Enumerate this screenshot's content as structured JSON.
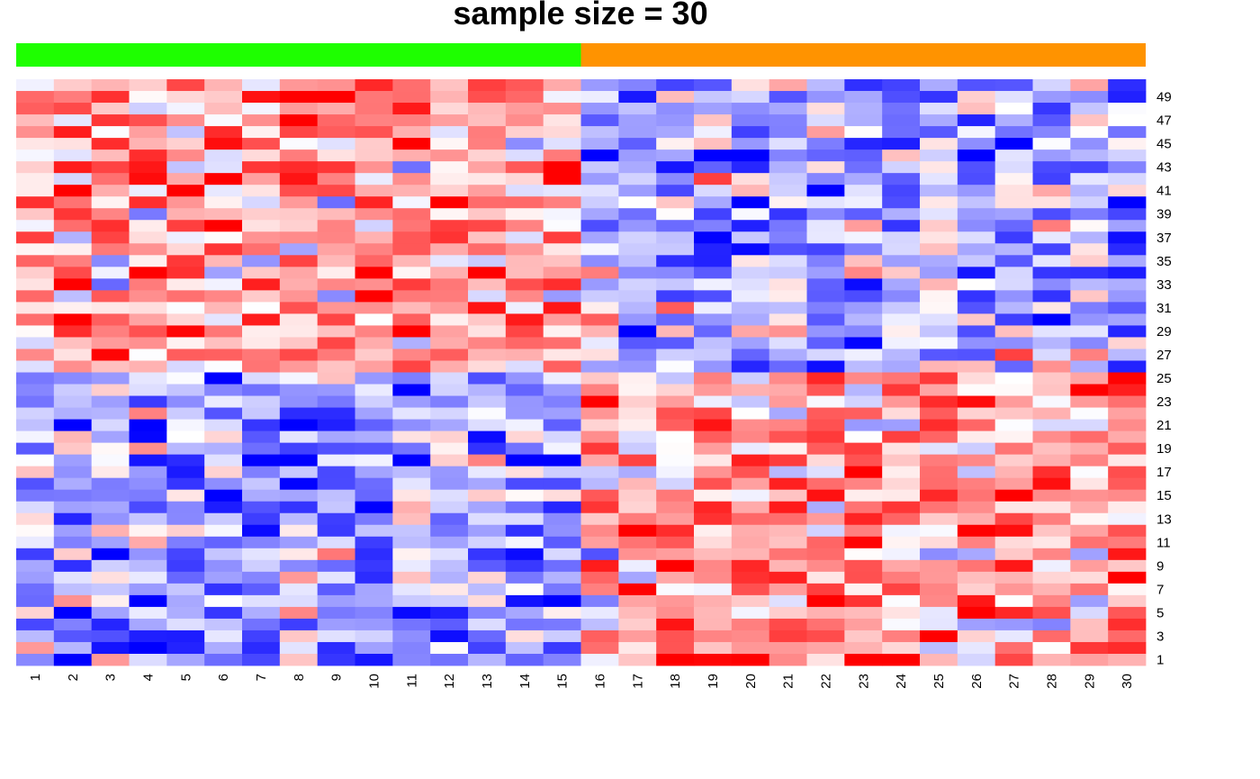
{
  "chart_data": {
    "type": "heatmap",
    "title": "sample size = 30",
    "columns": [
      "1",
      "2",
      "3",
      "4",
      "5",
      "6",
      "7",
      "8",
      "9",
      "10",
      "11",
      "12",
      "13",
      "14",
      "15",
      "16",
      "17",
      "18",
      "19",
      "20",
      "21",
      "22",
      "23",
      "24",
      "25",
      "26",
      "27",
      "28",
      "29",
      "30"
    ],
    "row_tick_labels": [
      "49",
      "47",
      "45",
      "43",
      "41",
      "39",
      "37",
      "35",
      "33",
      "31",
      "29",
      "27",
      "25",
      "23",
      "21",
      "19",
      "17",
      "15",
      "13",
      "11",
      "9",
      "7",
      "5",
      "3",
      "1"
    ],
    "n_rows": 50,
    "column_groups": [
      {
        "columns": [
          1,
          15
        ],
        "color": "#1EFF00"
      },
      {
        "columns": [
          16,
          30
        ],
        "color": "#FF9300"
      }
    ],
    "colors": {
      "low": "#0000FF",
      "mid": "#FFFFFF",
      "high": "#FF0000"
    },
    "value_range": [
      -2,
      2
    ]
  }
}
